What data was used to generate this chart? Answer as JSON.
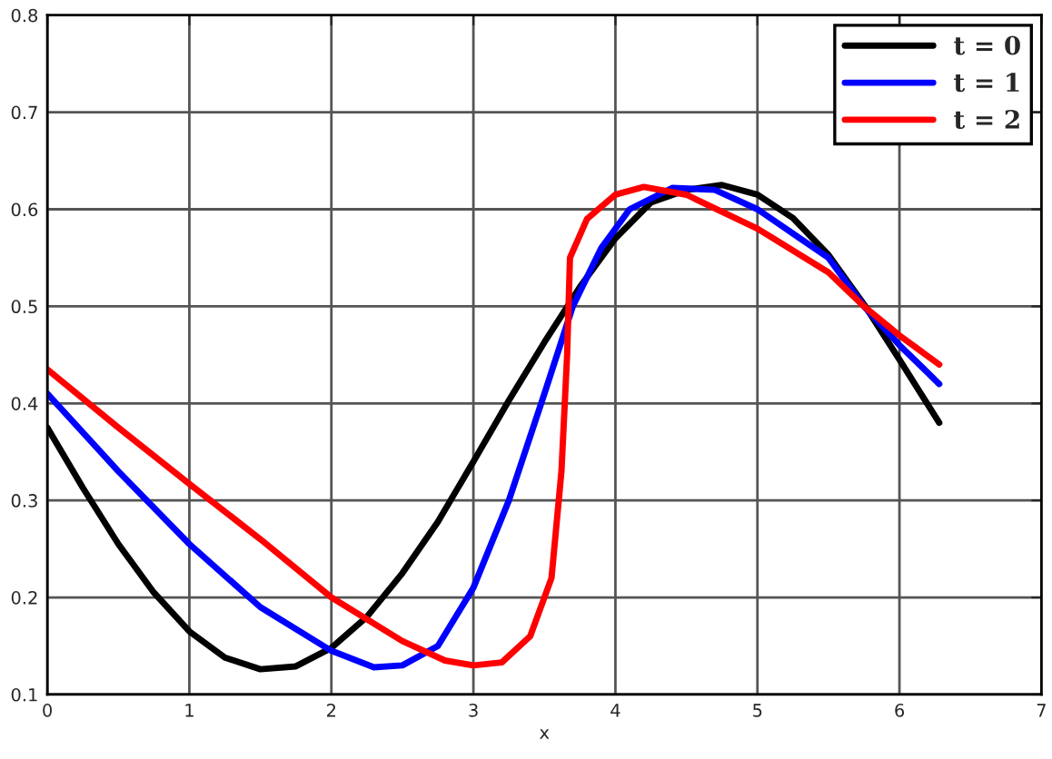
{
  "chart_data": {
    "type": "line",
    "xlabel": "x",
    "xlim": [
      0,
      7
    ],
    "xticks": [
      0,
      1,
      2,
      3,
      4,
      5,
      6,
      7
    ],
    "ylim": [
      0.1,
      0.8
    ],
    "yticks": [
      0.1,
      0.2,
      0.3,
      0.4,
      0.5,
      0.6,
      0.7,
      0.8
    ],
    "grid": true,
    "legend": "top right",
    "series": [
      {
        "name": "t = 0",
        "color": "#000000",
        "x": [
          0,
          0.25,
          0.5,
          0.75,
          1,
          1.25,
          1.5,
          1.75,
          2,
          2.25,
          2.5,
          2.75,
          3,
          3.25,
          3.5,
          3.75,
          4,
          4.25,
          4.5,
          4.75,
          5,
          5.25,
          5.5,
          5.75,
          6,
          6.28
        ],
        "values": [
          0.375,
          0.313,
          0.255,
          0.205,
          0.165,
          0.138,
          0.126,
          0.129,
          0.148,
          0.18,
          0.225,
          0.278,
          0.34,
          0.403,
          0.463,
          0.52,
          0.57,
          0.607,
          0.62,
          0.625,
          0.615,
          0.591,
          0.553,
          0.502,
          0.445,
          0.38
        ]
      },
      {
        "name": "t = 1",
        "color": "#0000ff",
        "x": [
          0,
          0.5,
          1,
          1.5,
          2,
          2.3,
          2.5,
          2.75,
          3,
          3.25,
          3.5,
          3.7,
          3.9,
          4.1,
          4.4,
          4.7,
          5,
          5.3,
          5.5,
          5.75,
          6,
          6.28
        ],
        "values": [
          0.41,
          0.33,
          0.255,
          0.19,
          0.145,
          0.128,
          0.13,
          0.15,
          0.21,
          0.3,
          0.41,
          0.5,
          0.56,
          0.6,
          0.622,
          0.62,
          0.6,
          0.57,
          0.55,
          0.5,
          0.46,
          0.42
        ]
      },
      {
        "name": "t = 2",
        "color": "#ff0000",
        "x": [
          0,
          0.5,
          1,
          1.5,
          2,
          2.5,
          2.8,
          3,
          3.2,
          3.4,
          3.55,
          3.62,
          3.66,
          3.68,
          3.8,
          4,
          4.2,
          4.5,
          5,
          5.5,
          5.75,
          6,
          6.28
        ],
        "values": [
          0.435,
          0.375,
          0.317,
          0.26,
          0.2,
          0.155,
          0.135,
          0.13,
          0.133,
          0.16,
          0.22,
          0.33,
          0.45,
          0.55,
          0.59,
          0.615,
          0.623,
          0.615,
          0.58,
          0.535,
          0.5,
          0.47,
          0.44
        ]
      }
    ]
  }
}
